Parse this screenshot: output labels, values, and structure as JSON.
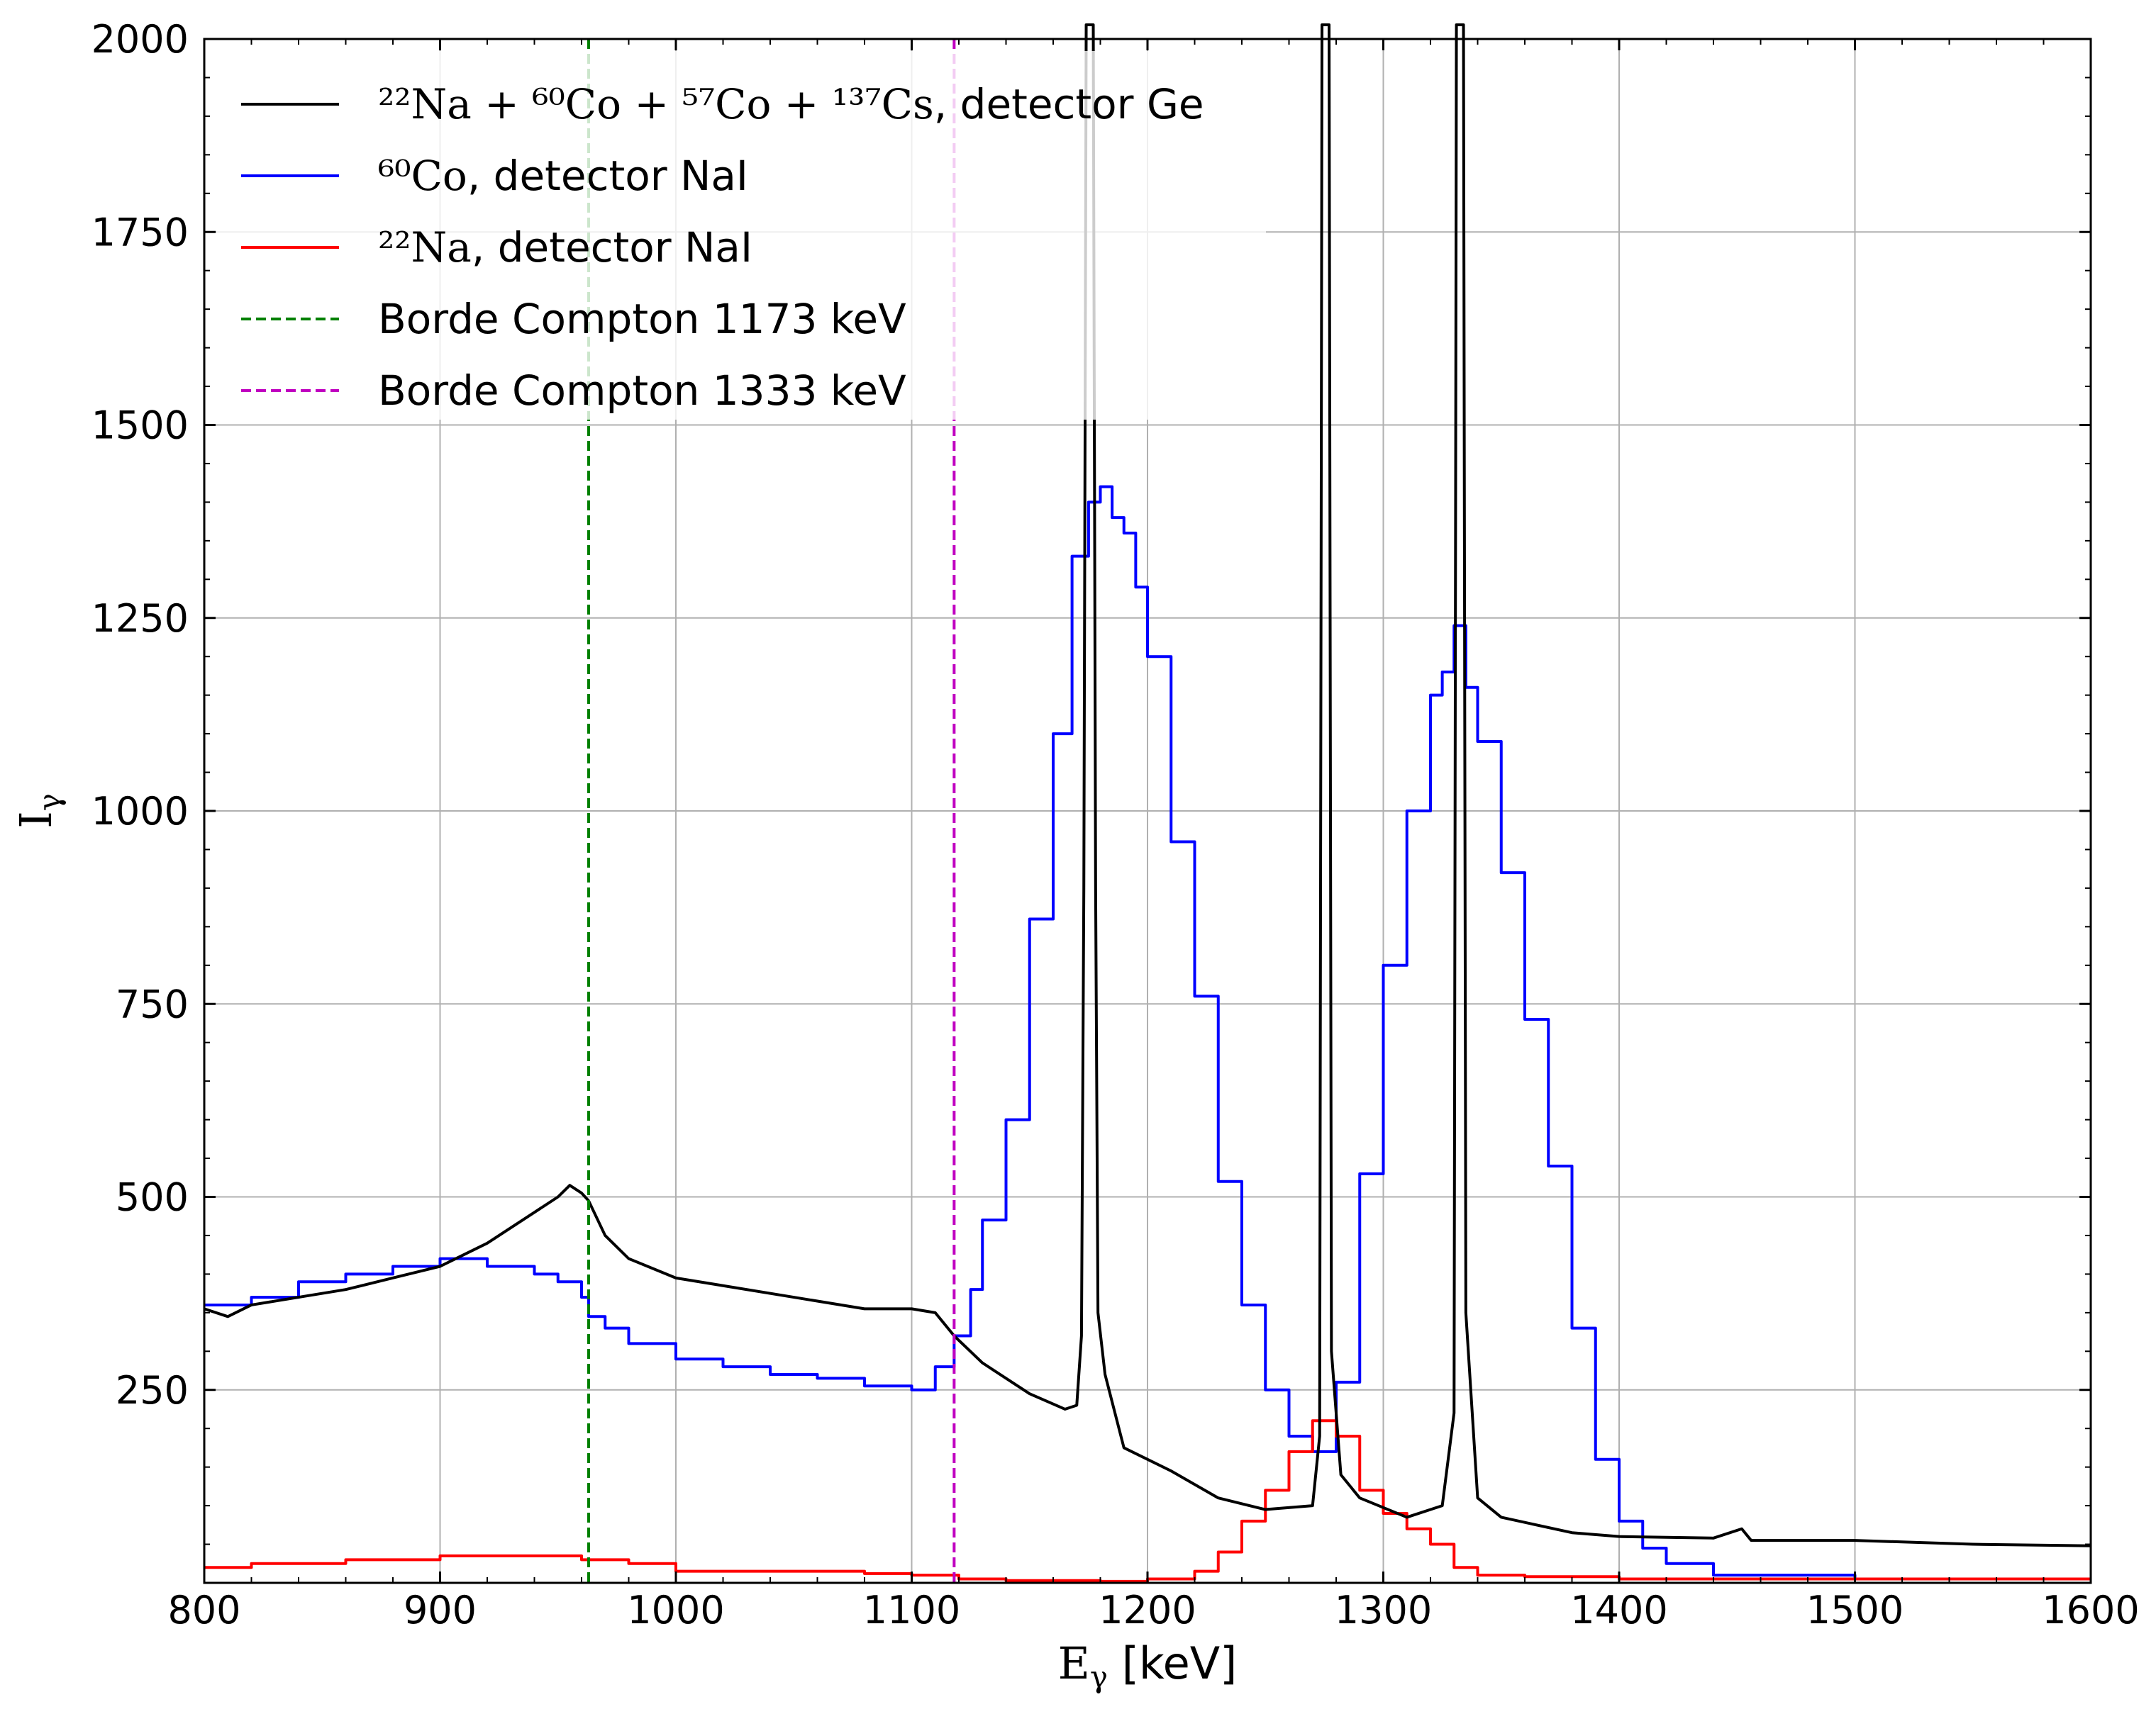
{
  "chart_data": {
    "type": "line",
    "xlabel": "E",
    "xlabel_sub": "γ",
    "xlabel_unit": " [keV]",
    "ylabel": "I",
    "ylabel_sub": "γ",
    "xlim": [
      800,
      1600
    ],
    "ylim": [
      0,
      2000
    ],
    "x_ticks": [
      800,
      900,
      1000,
      1100,
      1200,
      1300,
      1400,
      1500,
      1600
    ],
    "y_ticks": [
      250,
      500,
      750,
      1000,
      1250,
      1500,
      1750,
      2000
    ],
    "grid": true,
    "legend_position": "top-left",
    "legend": [
      {
        "label_math": "²²Na + ⁶⁰Co + ⁵⁷Co + ¹³⁷Cs",
        "label_text": ", detector Ge",
        "color": "#000000",
        "style": "solid"
      },
      {
        "label_math": "⁶⁰Co",
        "label_text": ", detector NaI",
        "color": "#0000ff",
        "style": "solid"
      },
      {
        "label_math": "²²Na",
        "label_text": ", detector NaI",
        "color": "#ff0000",
        "style": "solid"
      },
      {
        "label_math": "",
        "label_text": "Borde Compton 1173 keV",
        "color": "#008000",
        "style": "dashed"
      },
      {
        "label_math": "",
        "label_text": "Borde Compton 1333 keV",
        "color": "#c000c0",
        "style": "dashed"
      }
    ],
    "vlines": [
      {
        "x": 963,
        "color": "#008000"
      },
      {
        "x": 1118,
        "color": "#c000c0"
      }
    ],
    "series": [
      {
        "color": "#000000",
        "kind": "line",
        "points": [
          [
            800,
            355
          ],
          [
            810,
            345
          ],
          [
            820,
            360
          ],
          [
            840,
            370
          ],
          [
            860,
            380
          ],
          [
            880,
            395
          ],
          [
            900,
            410
          ],
          [
            920,
            440
          ],
          [
            940,
            480
          ],
          [
            950,
            500
          ],
          [
            955,
            515
          ],
          [
            960,
            505
          ],
          [
            963,
            495
          ],
          [
            970,
            450
          ],
          [
            980,
            420
          ],
          [
            1000,
            395
          ],
          [
            1020,
            385
          ],
          [
            1050,
            370
          ],
          [
            1080,
            355
          ],
          [
            1100,
            355
          ],
          [
            1110,
            350
          ],
          [
            1118,
            320
          ],
          [
            1130,
            285
          ],
          [
            1150,
            245
          ],
          [
            1165,
            225
          ],
          [
            1170,
            230
          ],
          [
            1172,
            320
          ],
          [
            1173,
            900
          ],
          [
            1174,
            2200
          ],
          [
            1177,
            2200
          ],
          [
            1178,
            900
          ],
          [
            1179,
            350
          ],
          [
            1182,
            270
          ],
          [
            1190,
            175
          ],
          [
            1210,
            145
          ],
          [
            1230,
            110
          ],
          [
            1250,
            95
          ],
          [
            1270,
            100
          ],
          [
            1273,
            190
          ],
          [
            1274,
            2200
          ],
          [
            1277,
            2200
          ],
          [
            1278,
            300
          ],
          [
            1282,
            140
          ],
          [
            1290,
            110
          ],
          [
            1310,
            85
          ],
          [
            1325,
            100
          ],
          [
            1330,
            220
          ],
          [
            1331,
            2200
          ],
          [
            1334,
            2200
          ],
          [
            1335,
            350
          ],
          [
            1340,
            110
          ],
          [
            1350,
            85
          ],
          [
            1380,
            65
          ],
          [
            1400,
            60
          ],
          [
            1440,
            58
          ],
          [
            1452,
            70
          ],
          [
            1456,
            55
          ],
          [
            1500,
            55
          ],
          [
            1550,
            50
          ],
          [
            1600,
            48
          ]
        ]
      },
      {
        "color": "#0000ff",
        "kind": "step",
        "points": [
          [
            800,
            360
          ],
          [
            820,
            370
          ],
          [
            840,
            390
          ],
          [
            860,
            400
          ],
          [
            880,
            410
          ],
          [
            900,
            420
          ],
          [
            920,
            410
          ],
          [
            940,
            400
          ],
          [
            950,
            390
          ],
          [
            960,
            370
          ],
          [
            963,
            345
          ],
          [
            970,
            330
          ],
          [
            980,
            310
          ],
          [
            1000,
            290
          ],
          [
            1020,
            280
          ],
          [
            1040,
            270
          ],
          [
            1060,
            265
          ],
          [
            1080,
            255
          ],
          [
            1100,
            250
          ],
          [
            1110,
            280
          ],
          [
            1118,
            320
          ],
          [
            1125,
            380
          ],
          [
            1130,
            470
          ],
          [
            1140,
            600
          ],
          [
            1150,
            860
          ],
          [
            1160,
            1100
          ],
          [
            1168,
            1330
          ],
          [
            1175,
            1400
          ],
          [
            1180,
            1420
          ],
          [
            1185,
            1380
          ],
          [
            1190,
            1360
          ],
          [
            1195,
            1290
          ],
          [
            1200,
            1200
          ],
          [
            1210,
            960
          ],
          [
            1220,
            760
          ],
          [
            1230,
            520
          ],
          [
            1240,
            360
          ],
          [
            1250,
            250
          ],
          [
            1260,
            190
          ],
          [
            1270,
            170
          ],
          [
            1280,
            260
          ],
          [
            1290,
            530
          ],
          [
            1300,
            800
          ],
          [
            1310,
            1000
          ],
          [
            1320,
            1150
          ],
          [
            1325,
            1180
          ],
          [
            1330,
            1240
          ],
          [
            1335,
            1160
          ],
          [
            1340,
            1090
          ],
          [
            1350,
            920
          ],
          [
            1360,
            730
          ],
          [
            1370,
            540
          ],
          [
            1380,
            330
          ],
          [
            1390,
            160
          ],
          [
            1400,
            80
          ],
          [
            1410,
            45
          ],
          [
            1420,
            25
          ],
          [
            1440,
            10
          ],
          [
            1500,
            5
          ],
          [
            1600,
            5
          ]
        ]
      },
      {
        "color": "#ff0000",
        "kind": "step",
        "points": [
          [
            800,
            20
          ],
          [
            820,
            25
          ],
          [
            840,
            25
          ],
          [
            860,
            30
          ],
          [
            880,
            30
          ],
          [
            900,
            35
          ],
          [
            920,
            35
          ],
          [
            940,
            35
          ],
          [
            960,
            30
          ],
          [
            980,
            25
          ],
          [
            1000,
            15
          ],
          [
            1020,
            15
          ],
          [
            1040,
            15
          ],
          [
            1060,
            15
          ],
          [
            1080,
            12
          ],
          [
            1100,
            10
          ],
          [
            1120,
            5
          ],
          [
            1140,
            3
          ],
          [
            1160,
            3
          ],
          [
            1180,
            2
          ],
          [
            1200,
            5
          ],
          [
            1220,
            15
          ],
          [
            1230,
            40
          ],
          [
            1240,
            80
          ],
          [
            1250,
            120
          ],
          [
            1260,
            170
          ],
          [
            1270,
            210
          ],
          [
            1280,
            190
          ],
          [
            1290,
            120
          ],
          [
            1300,
            90
          ],
          [
            1310,
            70
          ],
          [
            1320,
            50
          ],
          [
            1330,
            20
          ],
          [
            1340,
            10
          ],
          [
            1360,
            8
          ],
          [
            1400,
            5
          ],
          [
            1500,
            5
          ],
          [
            1600,
            5
          ]
        ]
      }
    ]
  }
}
